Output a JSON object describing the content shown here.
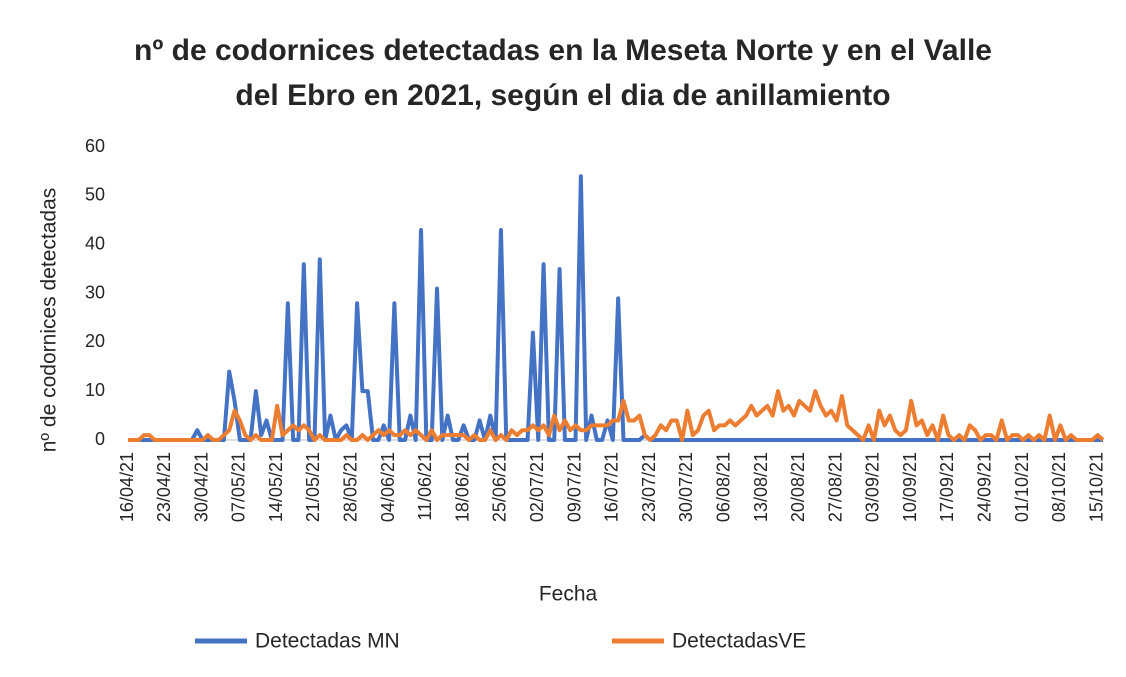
{
  "chart_data": {
    "type": "line",
    "title": "nº de codornices detectadas en la Meseta Norte y en el Valle del Ebro en 2021, según el dia de anillamiento",
    "xlabel": "Fecha",
    "ylabel": "nº de codornices detectadas",
    "categories": [
      "16/04/21",
      null,
      null,
      null,
      null,
      null,
      null,
      "23/04/21",
      null,
      null,
      null,
      null,
      null,
      null,
      "30/04/21",
      null,
      null,
      null,
      null,
      null,
      null,
      "07/05/21",
      null,
      null,
      null,
      null,
      null,
      null,
      "14/05/21",
      null,
      null,
      null,
      null,
      null,
      null,
      "21/05/21",
      null,
      null,
      null,
      null,
      null,
      null,
      "28/05/21",
      null,
      null,
      null,
      null,
      null,
      null,
      "04/06/21",
      null,
      null,
      null,
      null,
      null,
      null,
      "11/06/21",
      null,
      null,
      null,
      null,
      null,
      null,
      "18/06/21",
      null,
      null,
      null,
      null,
      null,
      null,
      "25/06/21",
      null,
      null,
      null,
      null,
      null,
      null,
      "02/07/21",
      null,
      null,
      null,
      null,
      null,
      null,
      "09/07/21",
      null,
      null,
      null,
      null,
      null,
      null,
      "16/07/21",
      null,
      null,
      null,
      null,
      null,
      null,
      "23/07/21",
      null,
      null,
      null,
      null,
      null,
      null,
      "30/07/21",
      null,
      null,
      null,
      null,
      null,
      null,
      "06/08/21",
      null,
      null,
      null,
      null,
      null,
      null,
      "13/08/21",
      null,
      null,
      null,
      null,
      null,
      null,
      "20/08/21",
      null,
      null,
      null,
      null,
      null,
      null,
      "27/08/21",
      null,
      null,
      null,
      null,
      null,
      null,
      "03/09/21",
      null,
      null,
      null,
      null,
      null,
      null,
      "10/09/21",
      null,
      null,
      null,
      null,
      null,
      null,
      "17/09/21",
      null,
      null,
      null,
      null,
      null,
      null,
      "24/09/21",
      null,
      null,
      null,
      null,
      null,
      null,
      "01/10/21",
      null,
      null,
      null,
      null,
      null,
      null,
      "08/10/21",
      null,
      null,
      null,
      null,
      null,
      null,
      "15/10/21",
      null
    ],
    "series": [
      {
        "name": "Detectadas MN",
        "color": "#4472c4",
        "values": [
          0,
          0,
          0,
          0,
          0,
          0,
          0,
          0,
          0,
          0,
          0,
          0,
          0,
          2,
          0,
          0,
          0,
          0,
          0,
          14,
          8,
          0,
          0,
          0,
          10,
          1,
          4,
          0,
          0,
          0,
          28,
          0,
          0,
          36,
          0,
          0,
          37,
          0,
          5,
          0,
          2,
          3,
          0,
          28,
          10,
          10,
          0,
          0,
          3,
          0,
          28,
          0,
          0,
          5,
          0,
          43,
          0,
          0,
          31,
          0,
          5,
          0,
          0,
          3,
          0,
          0,
          4,
          0,
          5,
          0,
          43,
          0,
          0,
          0,
          0,
          0,
          22,
          0,
          36,
          0,
          0,
          35,
          0,
          0,
          0,
          54,
          0,
          5,
          0,
          0,
          4,
          0,
          29,
          0,
          0,
          0,
          0,
          1,
          0,
          0,
          0,
          0,
          0,
          0,
          0,
          0,
          0,
          0,
          0,
          0,
          0,
          0,
          0,
          0,
          0,
          0,
          0,
          0,
          0,
          0,
          0,
          0,
          0,
          0,
          0,
          0,
          0,
          0,
          0,
          0,
          0,
          0,
          0,
          0,
          0,
          0,
          0,
          0,
          0,
          0,
          0,
          0,
          0,
          0,
          0,
          0,
          0,
          0,
          0,
          0,
          0,
          0,
          0,
          0,
          0,
          0,
          0,
          0,
          0,
          0,
          0,
          0,
          0,
          0,
          0,
          0,
          0,
          0,
          0,
          0,
          0,
          0,
          0,
          0,
          0,
          0,
          0,
          0,
          0,
          0,
          0,
          0,
          0,
          0
        ]
      },
      {
        "name": "DetectadasVE",
        "color": "#ed7d31",
        "values": [
          0,
          0,
          0,
          1,
          1,
          0,
          0,
          0,
          0,
          0,
          0,
          0,
          0,
          0,
          0,
          1,
          0,
          0,
          1,
          2,
          6,
          4,
          1,
          0,
          1,
          0,
          0,
          0,
          7,
          1,
          2,
          3,
          2,
          3,
          2,
          0,
          1,
          0,
          0,
          0,
          0,
          1,
          0,
          0,
          1,
          0,
          1,
          2,
          1,
          2,
          1,
          1,
          2,
          1,
          2,
          1,
          0,
          2,
          0,
          1,
          1,
          1,
          1,
          1,
          0,
          1,
          0,
          0,
          2,
          0,
          1,
          0,
          2,
          1,
          2,
          2,
          3,
          2,
          3,
          1,
          5,
          2,
          4,
          2,
          3,
          2,
          2,
          3,
          3,
          3,
          3,
          4,
          4,
          8,
          4,
          4,
          5,
          1,
          0,
          1,
          3,
          2,
          4,
          4,
          0,
          6,
          1,
          2,
          5,
          6,
          2,
          3,
          3,
          4,
          3,
          4,
          5,
          7,
          5,
          6,
          7,
          5,
          10,
          6,
          7,
          5,
          8,
          7,
          6,
          10,
          7,
          5,
          6,
          4,
          9,
          3,
          2,
          1,
          0,
          3,
          0,
          6,
          3,
          5,
          2,
          1,
          2,
          8,
          3,
          4,
          1,
          3,
          0,
          5,
          1,
          0,
          1,
          0,
          3,
          2,
          0,
          1,
          1,
          0,
          4,
          0,
          1,
          1,
          0,
          1,
          0,
          1,
          0,
          5,
          0,
          3,
          0,
          1,
          0,
          0,
          0,
          0,
          1,
          0
        ]
      }
    ],
    "ylim": [
      0,
      60
    ],
    "yticks": [
      0,
      10,
      20,
      30,
      40,
      50,
      60
    ],
    "grid": false,
    "legend": "bottom"
  }
}
